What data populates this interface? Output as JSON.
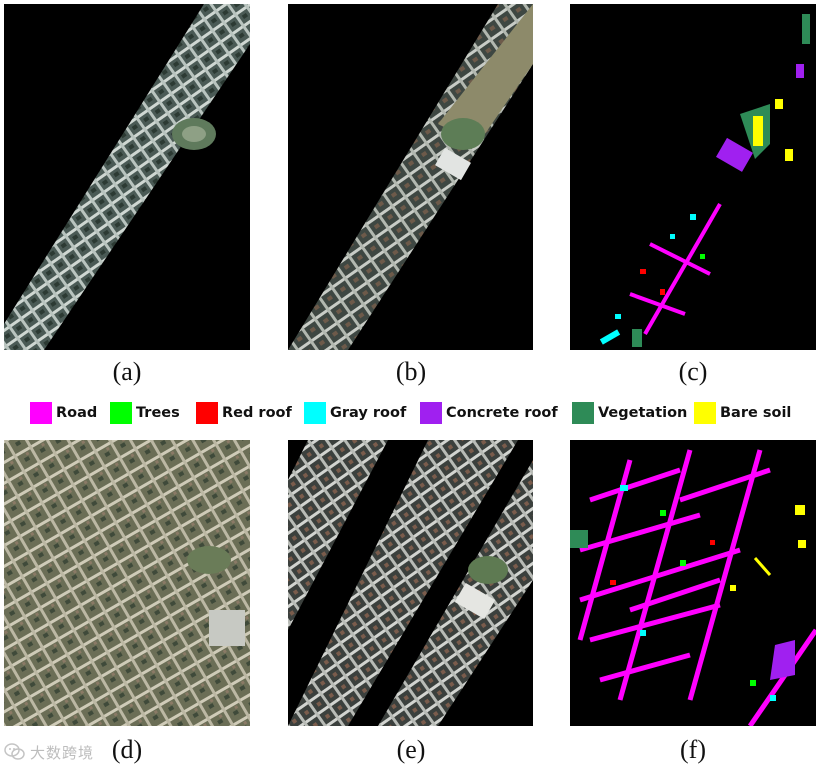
{
  "panels": [
    {
      "id": "a",
      "caption": "(a)",
      "type": "rgb-true-color"
    },
    {
      "id": "b",
      "caption": "(b)",
      "type": "rgb-true-color"
    },
    {
      "id": "c",
      "caption": "(c)",
      "type": "ground-truth-map"
    },
    {
      "id": "d",
      "caption": "(d)",
      "type": "rgb-true-color"
    },
    {
      "id": "e",
      "caption": "(e)",
      "type": "rgb-true-color"
    },
    {
      "id": "f",
      "caption": "(f)",
      "type": "ground-truth-map"
    }
  ],
  "legend": [
    {
      "label": "Road",
      "color": "#ff00ff"
    },
    {
      "label": "Trees",
      "color": "#00ff00"
    },
    {
      "label": "Red roof",
      "color": "#ff0000"
    },
    {
      "label": "Gray roof",
      "color": "#00ffff"
    },
    {
      "label": "Concrete roof",
      "color": "#a020f0"
    },
    {
      "label": "Vegetation",
      "color": "#2e8b57"
    },
    {
      "label": "Bare soil",
      "color": "#ffff00"
    }
  ],
  "watermark": {
    "text": "大数跨境",
    "icon": "wechat-icon"
  }
}
